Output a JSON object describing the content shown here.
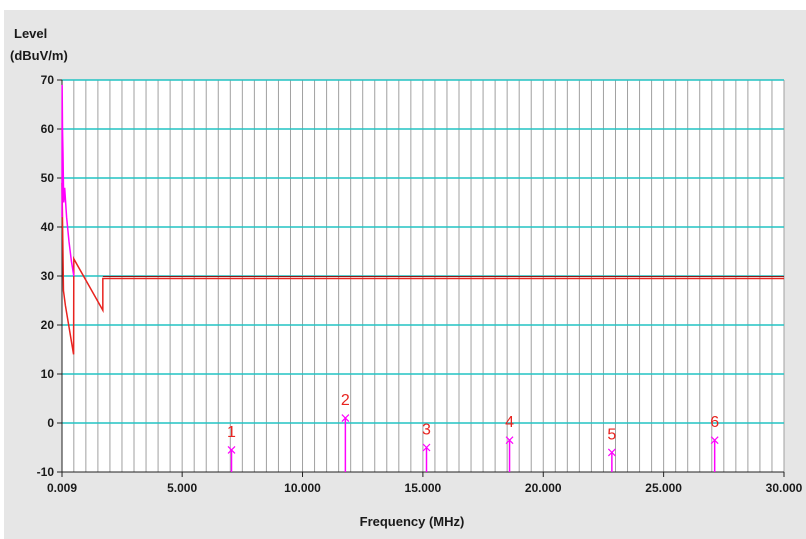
{
  "chart_data": {
    "type": "line",
    "ylabel_line1": "Level",
    "ylabel_line2": "(dBuV/m)",
    "xlabel": "Frequency (MHz)",
    "xlim": [
      0.009,
      30.0
    ],
    "ylim": [
      -10,
      70
    ],
    "x_tick_labels": [
      "0.009",
      "5.000",
      "10.000",
      "15.000",
      "20.000",
      "25.000",
      "30.000"
    ],
    "x_tick_values": [
      0.009,
      5.0,
      10.0,
      15.0,
      20.0,
      25.0,
      30.0
    ],
    "y_ticks": [
      -10,
      0,
      10,
      20,
      30,
      40,
      50,
      60,
      70
    ],
    "x_minor_step": 0.5,
    "grid": true,
    "colors": {
      "limit_line": "#e8231f",
      "limit_line_2": "#8b1a1a",
      "trace": "#ff00ff",
      "horizontal_grid": "#22c4c4",
      "vertical_grid": "#a0a0a0"
    },
    "series": [
      {
        "role": "limit",
        "points": [
          [
            0.009,
            49
          ],
          [
            0.07,
            27
          ],
          [
            0.15,
            24
          ],
          [
            0.49,
            14
          ],
          [
            0.5,
            33.5
          ],
          [
            1.705,
            23
          ],
          [
            1.705,
            29.5
          ],
          [
            30.0,
            29.5
          ]
        ]
      },
      {
        "role": "trace",
        "points": [
          [
            0.009,
            42
          ],
          [
            0.015,
            69
          ],
          [
            0.03,
            60
          ],
          [
            0.05,
            55
          ],
          [
            0.08,
            45
          ],
          [
            0.12,
            48
          ],
          [
            0.2,
            42
          ],
          [
            0.3,
            37
          ],
          [
            0.4,
            33
          ],
          [
            0.5,
            30
          ]
        ]
      }
    ],
    "markers": [
      {
        "label": "1",
        "x": 7.05,
        "y": -5.5
      },
      {
        "label": "2",
        "x": 11.78,
        "y": 1.0
      },
      {
        "label": "3",
        "x": 15.15,
        "y": -5.0
      },
      {
        "label": "4",
        "x": 18.6,
        "y": -3.5
      },
      {
        "label": "5",
        "x": 22.85,
        "y": -6.0
      },
      {
        "label": "6",
        "x": 27.12,
        "y": -3.5
      }
    ]
  }
}
